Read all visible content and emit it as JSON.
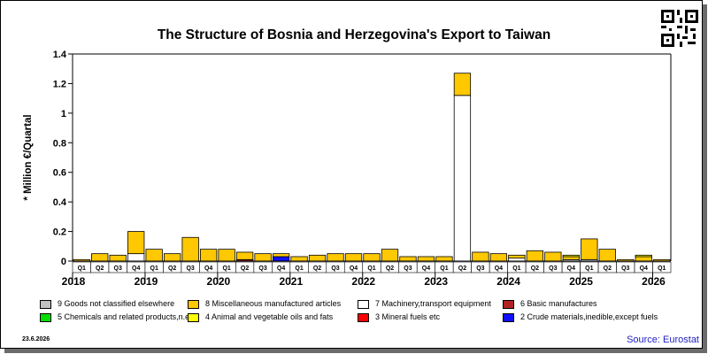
{
  "title": "The Structure of Bosnia and Herzegovina's Export to Taiwan",
  "ylabel": "* Million €/Quartal",
  "date_stamp": "23.6.2026",
  "source": "Source: Eurostat",
  "chart_data": {
    "type": "bar",
    "stacked": true,
    "title": "The Structure of Bosnia and Herzegovina's Export to Taiwan",
    "ylabel": "* Million €/Quartal",
    "ylim": [
      0,
      1.4
    ],
    "yticks": [
      0,
      0.2,
      0.4,
      0.6,
      0.8,
      1,
      1.2,
      1.4
    ],
    "categories": [
      "Q1",
      "Q2",
      "Q3",
      "Q4",
      "Q1",
      "Q2",
      "Q3",
      "Q4",
      "Q1",
      "Q2",
      "Q3",
      "Q4",
      "Q1",
      "Q2",
      "Q3",
      "Q4",
      "Q1",
      "Q2",
      "Q3",
      "Q4",
      "Q1",
      "Q2",
      "Q3",
      "Q4",
      "Q1",
      "Q2",
      "Q3",
      "Q4",
      "Q1",
      "Q2",
      "Q3",
      "Q4",
      "Q1"
    ],
    "years": [
      {
        "label": "2018",
        "start": 0
      },
      {
        "label": "2019",
        "start": 4
      },
      {
        "label": "2020",
        "start": 8
      },
      {
        "label": "2021",
        "start": 12
      },
      {
        "label": "2022",
        "start": 16
      },
      {
        "label": "2023",
        "start": 20
      },
      {
        "label": "2024",
        "start": 24
      },
      {
        "label": "2025",
        "start": 28
      },
      {
        "label": "2026",
        "start": 32
      }
    ],
    "series": [
      {
        "name": "2 Crude materials,inedible,except fuels",
        "color": "#1010ff",
        "values": [
          0,
          0,
          0,
          0,
          0,
          0,
          0,
          0,
          0,
          0,
          0,
          0.03,
          0,
          0,
          0,
          0,
          0,
          0,
          0,
          0,
          0,
          0,
          0,
          0,
          0,
          0,
          0,
          0,
          0,
          0,
          0,
          0,
          0
        ]
      },
      {
        "name": "6 Basic manufactures",
        "color": "#b22222",
        "values": [
          0,
          0,
          0,
          0,
          0,
          0,
          0,
          0,
          0,
          0.01,
          0,
          0,
          0,
          0,
          0,
          0,
          0,
          0,
          0,
          0,
          0,
          0,
          0,
          0,
          0,
          0,
          0,
          0,
          0,
          0,
          0,
          0,
          0
        ]
      },
      {
        "name": "7 Machinery,transport equipment",
        "color": "#ffffff",
        "values": [
          0,
          0,
          0,
          0.05,
          0,
          0,
          0,
          0,
          0,
          0,
          0,
          0,
          0,
          0,
          0,
          0,
          0,
          0,
          0,
          0,
          0,
          1.12,
          0,
          0,
          0.02,
          0,
          0,
          0.01,
          0.01,
          0,
          0,
          0,
          0
        ]
      },
      {
        "name": "8 Miscellaneous manufactured articles",
        "color": "#ffc800",
        "values": [
          0.01,
          0.05,
          0.04,
          0.15,
          0.08,
          0.05,
          0.16,
          0.08,
          0.08,
          0.05,
          0.05,
          0.02,
          0.03,
          0.04,
          0.05,
          0.05,
          0.05,
          0.08,
          0.03,
          0.03,
          0.03,
          0.15,
          0.06,
          0.05,
          0.02,
          0.07,
          0.06,
          0.02,
          0.14,
          0.08,
          0.01,
          0.03,
          0.01
        ]
      },
      {
        "name": "4 Animal and vegetable oils and fats",
        "color": "#ffff00",
        "values": [
          0,
          0,
          0,
          0,
          0,
          0,
          0,
          0,
          0,
          0,
          0,
          0,
          0,
          0,
          0,
          0,
          0,
          0,
          0,
          0,
          0,
          0,
          0,
          0,
          0,
          0,
          0,
          0.01,
          0,
          0,
          0,
          0.01,
          0
        ]
      }
    ],
    "legend": [
      {
        "label": "9 Goods not classified elsewhere",
        "color": "#c0c0c0"
      },
      {
        "label": "8 Miscellaneous manufactured articles",
        "color": "#ffc800"
      },
      {
        "label": "7 Machinery,transport equipment",
        "color": "#ffffff"
      },
      {
        "label": "6 Basic manufactures",
        "color": "#b22222"
      },
      {
        "label": "5 Chemicals and related products,n.e.s.",
        "color": "#00e000"
      },
      {
        "label": "4 Animal and vegetable oils and fats",
        "color": "#ffff00"
      },
      {
        "label": "3 Mineral fuels etc",
        "color": "#ff0000"
      },
      {
        "label": "2 Crude materials,inedible,except fuels",
        "color": "#1010ff"
      }
    ],
    "legend_placement": "bottom",
    "grid": false
  }
}
